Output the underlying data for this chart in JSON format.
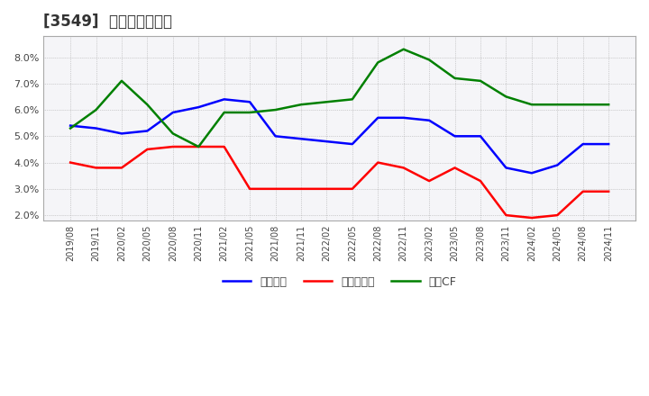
{
  "title": "[3549]  マージンの推移",
  "title_fontsize": 12,
  "background_color": "#ffffff",
  "ylim": [
    0.018,
    0.088
  ],
  "yticks": [
    0.02,
    0.03,
    0.04,
    0.05,
    0.06,
    0.07,
    0.08
  ],
  "x_labels": [
    "2019/08",
    "2019/11",
    "2020/02",
    "2020/05",
    "2020/08",
    "2020/11",
    "2021/02",
    "2021/05",
    "2021/08",
    "2021/11",
    "2022/02",
    "2022/05",
    "2022/08",
    "2022/11",
    "2023/02",
    "2023/05",
    "2023/08",
    "2023/11",
    "2024/02",
    "2024/05",
    "2024/08",
    "2024/11"
  ],
  "series": {
    "経常利益": {
      "color": "#0000ff",
      "values": [
        0.054,
        0.053,
        0.051,
        0.052,
        0.059,
        0.061,
        0.064,
        0.063,
        0.05,
        0.049,
        0.048,
        0.047,
        0.057,
        0.057,
        0.056,
        0.05,
        0.05,
        0.038,
        0.036,
        0.039,
        0.047,
        0.047
      ]
    },
    "当期純利益": {
      "color": "#ff0000",
      "values": [
        0.04,
        0.038,
        0.038,
        0.045,
        0.046,
        0.046,
        0.046,
        0.03,
        0.03,
        0.03,
        0.03,
        0.03,
        0.04,
        0.038,
        0.033,
        0.038,
        0.033,
        0.02,
        0.019,
        0.02,
        0.029,
        0.029
      ]
    },
    "営業CF": {
      "color": "#008000",
      "values": [
        0.053,
        0.06,
        0.071,
        0.062,
        0.051,
        0.046,
        0.059,
        0.059,
        0.06,
        0.062,
        0.063,
        0.064,
        0.078,
        0.083,
        0.079,
        0.072,
        0.071,
        0.065,
        0.062,
        0.062,
        0.062,
        0.062
      ]
    }
  },
  "legend_labels": [
    "経常利益",
    "当期純利益",
    "営業CF"
  ],
  "grid_color": "#aaaaaa",
  "line_width": 1.8
}
